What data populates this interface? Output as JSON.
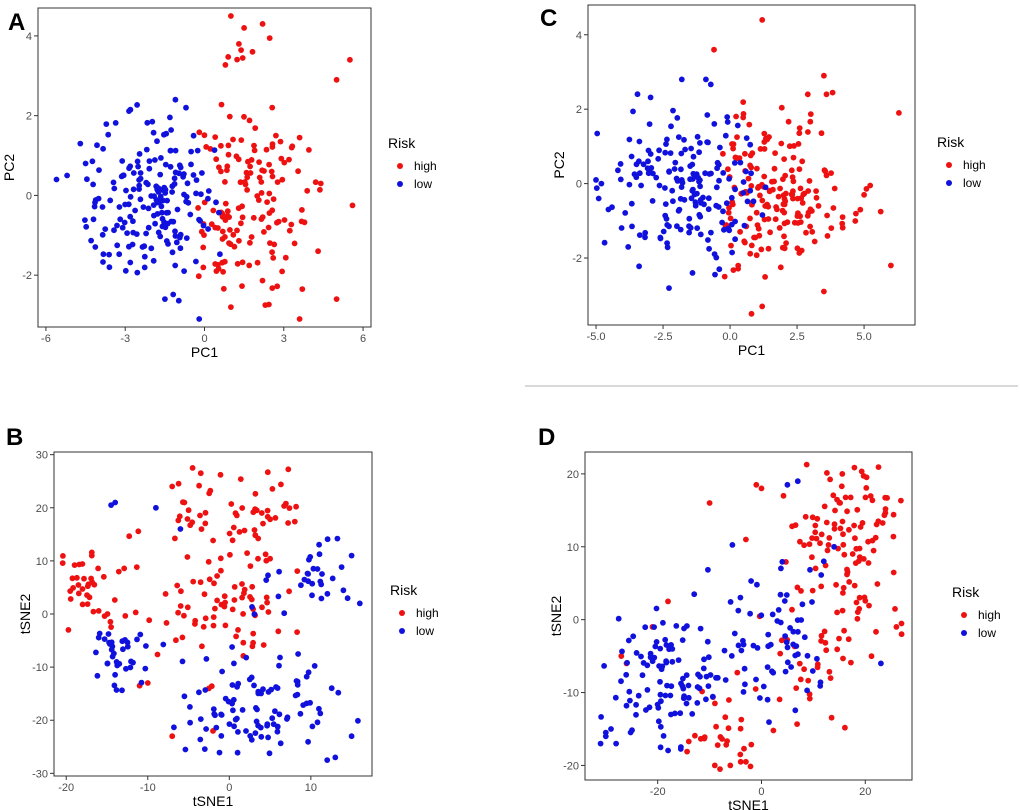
{
  "figure": {
    "colors": {
      "high": "#ee1111",
      "low": "#1111dd",
      "frame": "#333333",
      "background": "#ffffff"
    }
  },
  "chart_data": [
    {
      "id": "A",
      "letter": "A",
      "type": "scatter",
      "xlabel": "PC1",
      "ylabel": "PC2",
      "xlim": [
        -6.3,
        6.3
      ],
      "ylim": [
        -3.3,
        4.7
      ],
      "xticks": [
        -6,
        -3,
        0,
        3,
        6
      ],
      "xtick_labels": [
        "-6",
        "-3",
        "0",
        "3",
        "6"
      ],
      "yticks": [
        -2,
        0,
        2,
        4
      ],
      "ytick_labels": [
        "-2",
        "0",
        "2",
        "4"
      ],
      "legend": {
        "title": "Risk",
        "entries": [
          "high",
          "low"
        ]
      },
      "series": [
        {
          "name": "high",
          "color": "#ee1111",
          "n": 165,
          "clusters": [
            {
              "cx": 1.5,
              "cy": -0.3,
              "sx": 1.3,
              "sy": 1.0,
              "w": 0.9
            },
            {
              "cx": 1.6,
              "cy": 2.8,
              "sx": 0.8,
              "sy": 0.9,
              "w": 0.1
            }
          ],
          "xbounds": [
            -0.3,
            5.6
          ],
          "ybounds": [
            -3.1,
            4.5
          ],
          "fixed": [
            [
              1.0,
              4.5
            ],
            [
              1.5,
              4.2
            ],
            [
              2.2,
              4.3
            ],
            [
              5.5,
              3.4
            ],
            [
              5.0,
              2.9
            ],
            [
              1.3,
              3.8
            ],
            [
              5.6,
              -0.25
            ],
            [
              3.6,
              -3.1
            ],
            [
              5.0,
              -2.6
            ],
            [
              1.0,
              -2.8
            ],
            [
              2.3,
              -2.75
            ],
            [
              2.7,
              1.5
            ],
            [
              3.3,
              1.2
            ],
            [
              4.4,
              0.3
            ],
            [
              4.3,
              -1.4
            ],
            [
              3.7,
              -2.35
            ]
          ]
        },
        {
          "name": "low",
          "color": "#1111dd",
          "n": 195,
          "clusters": [
            {
              "cx": -1.8,
              "cy": -0.1,
              "sx": 1.3,
              "sy": 1.0,
              "w": 1.0
            }
          ],
          "xbounds": [
            -5.9,
            0.6
          ],
          "ybounds": [
            -3.1,
            2.5
          ],
          "fixed": [
            [
              -5.6,
              0.4
            ],
            [
              -5.2,
              0.5
            ],
            [
              -4.7,
              1.3
            ],
            [
              -4.5,
              0.8
            ],
            [
              -4.2,
              -0.6
            ],
            [
              -1.1,
              2.4
            ],
            [
              -0.7,
              2.2
            ],
            [
              -1.5,
              -2.6
            ],
            [
              -0.2,
              -3.1
            ],
            [
              -3.6,
              -1.8
            ]
          ]
        }
      ]
    },
    {
      "id": "C",
      "letter": "C",
      "type": "scatter",
      "xlabel": "PC1",
      "ylabel": "PC2",
      "xlim": [
        -5.3,
        6.9
      ],
      "ylim": [
        -3.8,
        4.8
      ],
      "xticks": [
        -5,
        -2.5,
        0,
        2.5,
        5
      ],
      "xtick_labels": [
        "-5.0",
        "-2.5",
        "0.0",
        "2.5",
        "5.0"
      ],
      "yticks": [
        -2,
        0,
        2,
        4
      ],
      "ytick_labels": [
        "-2",
        "0",
        "2",
        "4"
      ],
      "legend": {
        "title": "Risk",
        "entries": [
          "high",
          "low"
        ]
      },
      "series": [
        {
          "name": "high",
          "color": "#ee1111",
          "n": 190,
          "clusters": [
            {
              "cx": 1.6,
              "cy": -0.3,
              "sx": 1.5,
              "sy": 1.1,
              "w": 1.0
            }
          ],
          "xbounds": [
            -0.3,
            6.5
          ],
          "ybounds": [
            -3.6,
            4.5
          ],
          "fixed": [
            [
              1.2,
              4.4
            ],
            [
              -0.6,
              3.6
            ],
            [
              6.3,
              1.9
            ],
            [
              6.0,
              -2.2
            ],
            [
              3.5,
              2.9
            ],
            [
              2.9,
              2.4
            ],
            [
              3.6,
              2.4
            ],
            [
              1.2,
              -3.3
            ],
            [
              0.8,
              -3.5
            ],
            [
              -0.2,
              -2.5
            ],
            [
              4.2,
              -0.9
            ],
            [
              5.0,
              -0.3
            ],
            [
              3.5,
              -2.9
            ]
          ]
        },
        {
          "name": "low",
          "color": "#1111dd",
          "n": 185,
          "clusters": [
            {
              "cx": -1.5,
              "cy": 0.0,
              "sx": 1.4,
              "sy": 1.1,
              "w": 1.0
            }
          ],
          "xbounds": [
            -5.0,
            1.5
          ],
          "ybounds": [
            -2.9,
            2.9
          ],
          "fixed": [
            [
              -5.0,
              0.1
            ],
            [
              -4.8,
              0.0
            ],
            [
              -4.9,
              -0.4
            ],
            [
              -3.0,
              1.6
            ],
            [
              -0.9,
              2.8
            ],
            [
              -1.8,
              2.8
            ],
            [
              -1.4,
              -2.4
            ],
            [
              -0.4,
              -2.3
            ],
            [
              -3.8,
              -1.7
            ]
          ]
        }
      ]
    },
    {
      "id": "B",
      "letter": "B",
      "type": "scatter",
      "xlabel": "tSNE1",
      "ylabel": "tSNE2",
      "xlim": [
        -21.5,
        17.5
      ],
      "ylim": [
        -30.5,
        30.5
      ],
      "xticks": [
        -20,
        -10,
        0,
        10
      ],
      "xtick_labels": [
        "-20",
        "-10",
        "0",
        "10"
      ],
      "yticks": [
        -30,
        -20,
        -10,
        0,
        10,
        20,
        30
      ],
      "ytick_labels": [
        "-30",
        "-20",
        "-10",
        "0",
        "10",
        "20",
        "30"
      ],
      "legend": {
        "title": "Risk",
        "entries": [
          "high",
          "low"
        ]
      },
      "series": [
        {
          "name": "high",
          "color": "#ee1111",
          "n": 175,
          "clusters": [
            {
              "cx": 1,
              "cy": 18,
              "sx": 4.5,
              "sy": 4.5,
              "w": 0.4
            },
            {
              "cx": -16,
              "cy": 5,
              "sx": 2.5,
              "sy": 4.0,
              "w": 0.25
            },
            {
              "cx": 0,
              "cy": 2,
              "sx": 4.0,
              "sy": 5.5,
              "w": 0.35
            }
          ],
          "xbounds": [
            -20.5,
            8.5
          ],
          "ybounds": [
            -22,
            28
          ],
          "fixed": [
            [
              -4.5,
              27.5
            ],
            [
              -3.5,
              26.5
            ],
            [
              -7,
              24
            ],
            [
              -10,
              -13
            ],
            [
              -11,
              -13.5
            ],
            [
              -2,
              -22
            ],
            [
              -7,
              -23
            ],
            [
              -2.5,
              -14
            ]
          ]
        },
        {
          "name": "low",
          "color": "#1111dd",
          "n": 175,
          "clusters": [
            {
              "cx": 3,
              "cy": -18,
              "sx": 6.0,
              "sy": 5.0,
              "w": 0.6
            },
            {
              "cx": 10,
              "cy": 7,
              "sx": 3.0,
              "sy": 4.0,
              "w": 0.2
            },
            {
              "cx": -14,
              "cy": -8,
              "sx": 2.0,
              "sy": 3.5,
              "w": 0.2
            }
          ],
          "xbounds": [
            -16.5,
            16
          ],
          "ybounds": [
            -28,
            21
          ],
          "fixed": [
            [
              -14,
              21
            ],
            [
              -14.5,
              20.5
            ],
            [
              -9,
              20
            ],
            [
              15,
              11
            ],
            [
              16,
              2
            ],
            [
              -6,
              16
            ],
            [
              13,
              -27
            ],
            [
              12,
              -27.5
            ],
            [
              15,
              -23
            ]
          ]
        }
      ]
    },
    {
      "id": "D",
      "letter": "D",
      "type": "scatter",
      "xlabel": "tSNE1",
      "ylabel": "tSNE2",
      "xlim": [
        -34,
        29
      ],
      "ylim": [
        -22,
        23
      ],
      "xticks": [
        -20,
        0,
        20
      ],
      "xtick_labels": [
        "-20",
        "0",
        "20"
      ],
      "yticks": [
        -20,
        -10,
        0,
        10,
        20
      ],
      "ytick_labels": [
        "-20",
        "-10",
        "0",
        "10",
        "20"
      ],
      "legend": {
        "title": "Risk",
        "entries": [
          "high",
          "low"
        ]
      },
      "series": [
        {
          "name": "high",
          "color": "#ee1111",
          "n": 185,
          "clusters": [
            {
              "cx": 17,
              "cy": 12,
              "sx": 6.0,
              "sy": 6.0,
              "w": 0.65
            },
            {
              "cx": 10,
              "cy": -4,
              "sx": 6.0,
              "sy": 5.0,
              "w": 0.25
            },
            {
              "cx": -6,
              "cy": -16,
              "sx": 4.0,
              "sy": 3.0,
              "w": 0.1
            }
          ],
          "xbounds": [
            -22,
            28
          ],
          "ybounds": [
            -21,
            21.5
          ],
          "fixed": [
            [
              -8,
              -20.5
            ],
            [
              -9,
              -20
            ],
            [
              -6,
              -20
            ],
            [
              -4,
              -19.5
            ],
            [
              -3,
              -19.5
            ],
            [
              -1,
              18.5
            ],
            [
              0,
              18
            ],
            [
              -10,
              16
            ],
            [
              -3,
              11
            ],
            [
              -26,
              -6
            ],
            [
              -27,
              -5
            ],
            [
              -21,
              -1
            ],
            [
              -18,
              2.5
            ],
            [
              27,
              -2
            ],
            [
              26,
              -1
            ]
          ]
        },
        {
          "name": "low",
          "color": "#1111dd",
          "n": 180,
          "clusters": [
            {
              "cx": -18,
              "cy": -9,
              "sx": 7.0,
              "sy": 5.0,
              "w": 0.6
            },
            {
              "cx": 2,
              "cy": -3,
              "sx": 6.0,
              "sy": 5.0,
              "w": 0.4
            }
          ],
          "xbounds": [
            -32,
            25
          ],
          "ybounds": [
            -19,
            19
          ],
          "fixed": [
            [
              -31,
              -17
            ],
            [
              -30,
              -16
            ],
            [
              -29,
              -15
            ],
            [
              -30,
              -15.5
            ],
            [
              -28,
              -17
            ],
            [
              5,
              18.5
            ],
            [
              7,
              19
            ],
            [
              23,
              -6
            ],
            [
              12,
              8
            ],
            [
              14,
              10
            ]
          ]
        }
      ]
    }
  ]
}
